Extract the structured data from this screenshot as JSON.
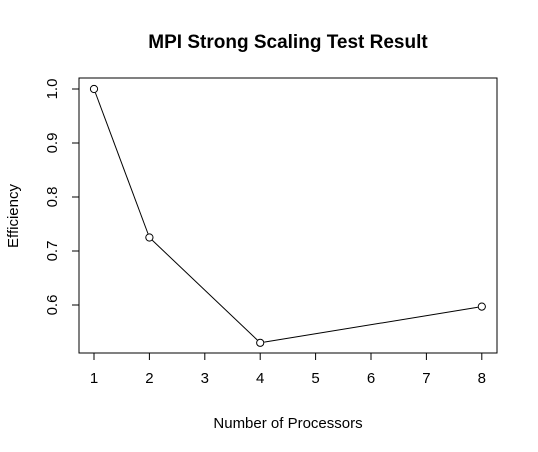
{
  "chart_data": {
    "type": "line",
    "title": "MPI Strong Scaling Test Result",
    "xlabel": "Number of Processors",
    "ylabel": "Efficiency",
    "x_tick_labels": [
      "1",
      "2",
      "3",
      "4",
      "5",
      "6",
      "7",
      "8"
    ],
    "y_tick_labels": [
      "0.6",
      "0.7",
      "0.8",
      "0.9",
      "1.0"
    ],
    "ylim": [
      0.5,
      1.0
    ],
    "grid": false,
    "series": [
      {
        "points": [
          {
            "x": "1",
            "y": 1.0
          },
          {
            "x": "2",
            "y": 0.725
          },
          {
            "x": "4",
            "y": 0.53
          },
          {
            "x": "8",
            "y": 0.597
          }
        ]
      }
    ]
  }
}
